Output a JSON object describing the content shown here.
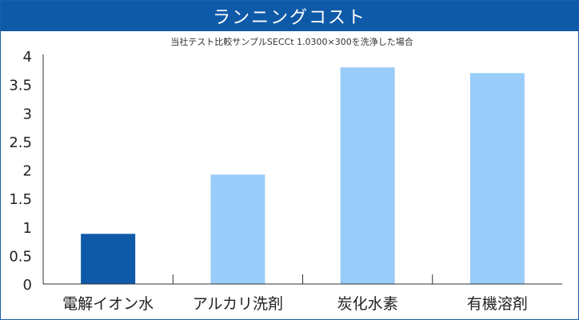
{
  "header": {
    "title": "ランニングコスト"
  },
  "colors": {
    "header_bg": "#0f5aa8",
    "bar_highlight": "#0f5aa8",
    "bar_normal": "#99ccf8",
    "axis": "#333333"
  },
  "chart_data": {
    "type": "bar",
    "title": "ランニングコスト",
    "subtitle": "当社テスト比較サンプルSECCt 1.0300×300を洗浄した場合",
    "xlabel": "",
    "ylabel": "",
    "ylim": [
      0,
      4
    ],
    "yticks": [
      "0",
      "0.5",
      "1",
      "1.5",
      "2",
      "2.5",
      "3",
      "3.5",
      "4"
    ],
    "grid": false,
    "categories": [
      "電解イオン水",
      "アルカリ洗剤",
      "炭化水素",
      "有機溶剤"
    ],
    "values": [
      0.88,
      1.92,
      3.8,
      3.7
    ],
    "highlight_index": 0
  }
}
